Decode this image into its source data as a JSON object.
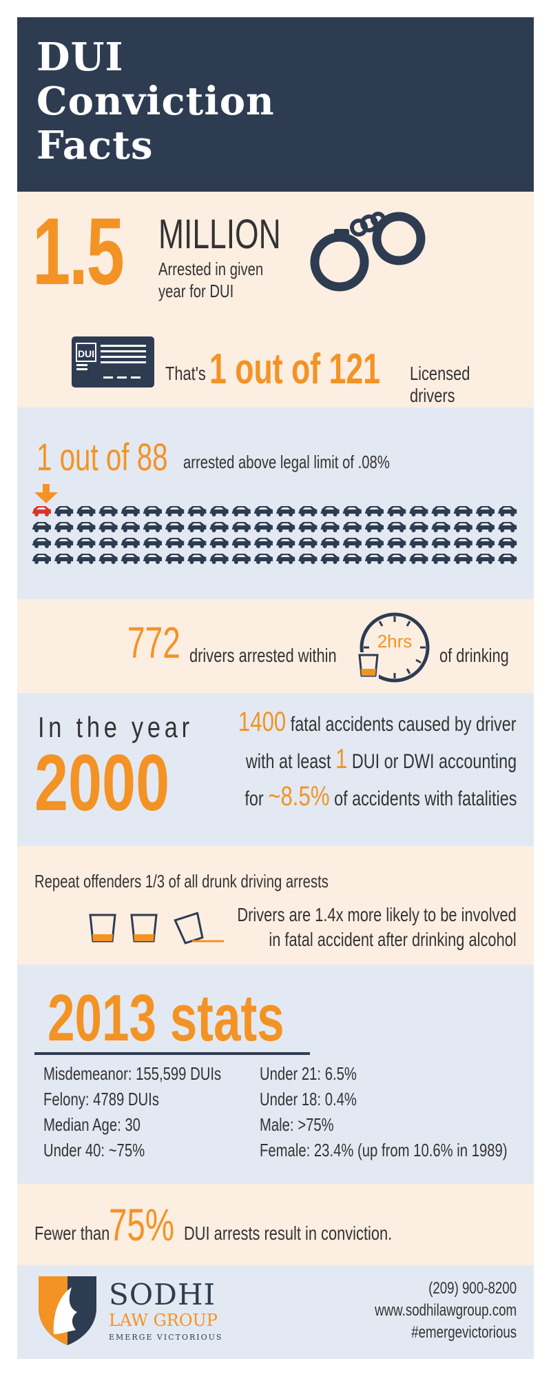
{
  "header": {
    "title_lines": [
      "DUI",
      "Conviction",
      "Facts"
    ]
  },
  "arrests": {
    "big_number": "1.5",
    "unit": "MILLION",
    "caption_lines": [
      "Arrested in given",
      "year for DUI"
    ],
    "license_label": "DUI",
    "thats": "That's",
    "ratio": "1 out of 121",
    "licensed": "Licensed drivers"
  },
  "legal_limit": {
    "ratio": "1 out of 88",
    "text": "arrested above legal limit of .08%",
    "highlight_color": "#d9362b",
    "car_color": "#2e3c52"
  },
  "two_hours": {
    "number": "772",
    "text": "drivers arrested within",
    "clock_label": "2hrs",
    "tail": "of drinking"
  },
  "year2000": {
    "in_the_year": "In the year",
    "year": "2000",
    "l1_num": "1400",
    "l1_text": "fatal accidents caused by driver",
    "l2_pre": "with at least",
    "l2_num": "1",
    "l2_post": "DUI or DWI accounting",
    "l3_pre": "for",
    "l3_num": "~8.5%",
    "l3_post": "of accidents with fatalities"
  },
  "repeat": {
    "text": "Repeat offenders 1/3 of all drunk driving arrests",
    "likely_lines": [
      "Drivers are 1.4x more likely to be involved",
      "in fatal accident after drinking alcohol"
    ]
  },
  "stats": {
    "title": "2013 stats",
    "left": [
      "Misdemeanor: 155,599 DUIs",
      "Felony: 4789 DUIs",
      "Median Age: 30",
      "Under 40: ~75%"
    ],
    "right": [
      "Under 21: 6.5%",
      "Under 18: 0.4%",
      "Male: >75%",
      "Female: 23.4% (up from 10.6% in 1989)"
    ]
  },
  "conviction": {
    "pre": "Fewer than",
    "percent": "75%",
    "post": "DUI arrests result in conviction."
  },
  "footer": {
    "brand_name": "SODHI",
    "brand_sub": "LAW GROUP",
    "tagline": "EMERGE VICTORIOUS",
    "phone": "(209) 900-8200",
    "website": "www.sodhilawgroup.com",
    "hashtag": "#emergevictorious"
  },
  "colors": {
    "navy": "#2e3c52",
    "orange": "#f39325",
    "peach": "#fdeee2",
    "light_blue": "#e3e9f2"
  }
}
